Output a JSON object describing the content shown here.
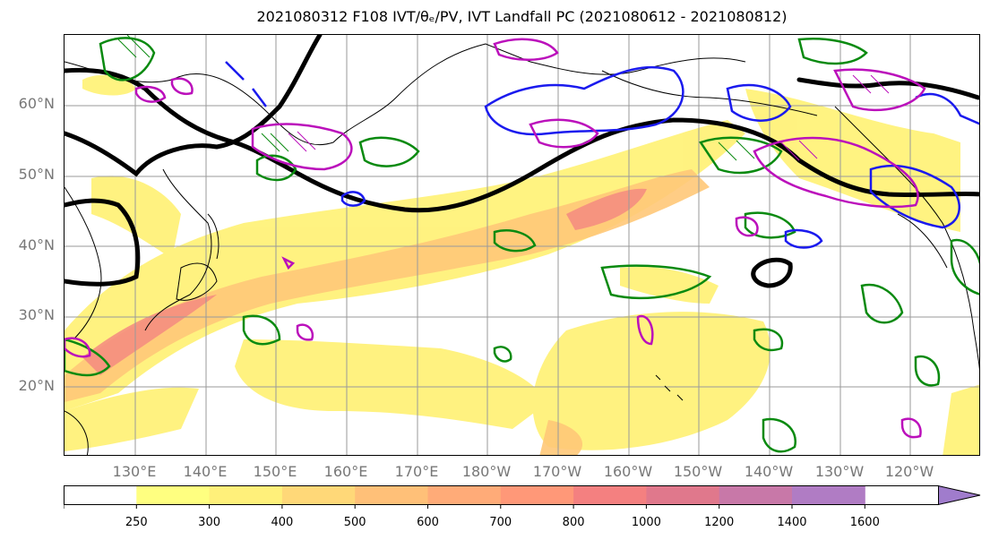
{
  "title": "2021080312 F108 IVT/θₑ/PV, IVT Landfall PC (2021080612 - 2021080812)",
  "lat_labels": [
    "60°N",
    "50°N",
    "40°N",
    "30°N",
    "20°N"
  ],
  "lon_labels": [
    "130°E",
    "140°E",
    "150°E",
    "160°E",
    "170°E",
    "180°W",
    "170°W",
    "160°W",
    "150°W",
    "140°W",
    "130°W",
    "120°W"
  ],
  "colorbar": {
    "labels": [
      "250",
      "300",
      "400",
      "500",
      "600",
      "700",
      "800",
      "1000",
      "1200",
      "1400",
      "1600"
    ],
    "colors": [
      "#ffffff",
      "#ffff80",
      "#fff07a",
      "#ffd878",
      "#ffc078",
      "#ffab78",
      "#ff9878",
      "#f48080",
      "#e0788c",
      "#c878a8",
      "#b07cc4",
      "#a07ccc"
    ]
  },
  "colors": {
    "ivt_low": "#fff27a",
    "ivt_mid": "#ffc878",
    "ivt_high": "#f58a80",
    "pv_line": "#000000",
    "green_contour": "#0a8a10",
    "blue_contour": "#1a1aee",
    "magenta_contour": "#bb10bb",
    "coast": "#000000",
    "grid": "#9a9a9a"
  }
}
